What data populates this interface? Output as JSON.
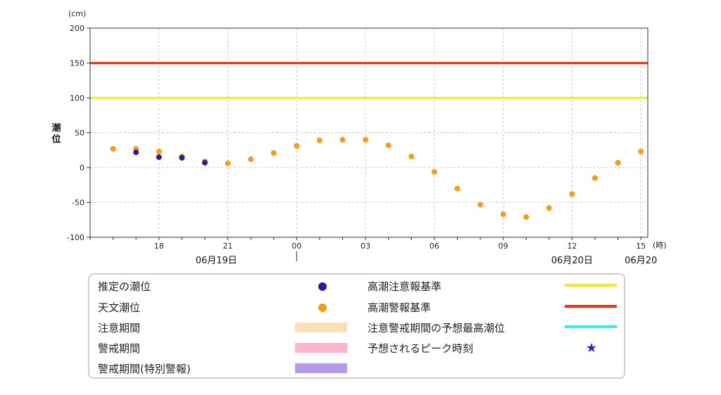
{
  "chart_data": {
    "type": "scatter",
    "ylabel": "潮位",
    "yunit": "(cm)",
    "xunit": "(時)",
    "ylim": [
      -100,
      200
    ],
    "yticks": [
      200,
      150,
      100,
      50,
      0,
      -50,
      -100
    ],
    "xrange_hours": [
      15,
      39.3
    ],
    "xticks": [
      {
        "h": 18,
        "label": "18"
      },
      {
        "h": 21,
        "label": "21"
      },
      {
        "h": 24,
        "label": "00"
      },
      {
        "h": 27,
        "label": "03"
      },
      {
        "h": 30,
        "label": "06"
      },
      {
        "h": 33,
        "label": "09"
      },
      {
        "h": 36,
        "label": "12"
      },
      {
        "h": 39,
        "label": "15"
      }
    ],
    "date_labels": [
      {
        "h": 20.5,
        "label": "06月19日"
      },
      {
        "h": 36,
        "label": "06月20日"
      },
      {
        "h": 39,
        "label": "06月20"
      }
    ],
    "grid": true,
    "reference_lines": [
      {
        "name": "高潮警報基準",
        "value": 150,
        "color": "#ee3311"
      },
      {
        "name": "高潮注意報基準",
        "value": 100,
        "color": "#eeee22"
      }
    ],
    "series": [
      {
        "name": "天文潮位",
        "color": "#ff9911",
        "x": [
          16,
          17,
          18,
          19,
          20,
          21,
          22,
          23,
          24,
          25,
          26,
          27,
          28,
          29,
          30,
          31,
          32,
          33,
          34,
          35,
          36,
          37,
          38,
          39
        ],
        "values": [
          27,
          27,
          23,
          16,
          9,
          6,
          12,
          21,
          31,
          39,
          40,
          40,
          32,
          16,
          -6,
          -30,
          -53,
          -67,
          -71,
          -58,
          -38,
          -15,
          7,
          23
        ]
      },
      {
        "name": "推定の潮位",
        "color": "#2a1ab0",
        "x": [
          17,
          18,
          19,
          20
        ],
        "values": [
          22,
          15,
          14,
          7
        ]
      }
    ]
  },
  "legend": {
    "items": [
      {
        "label": "推定の潮位"
      },
      {
        "label": "天文潮位"
      },
      {
        "label": "注意期間"
      },
      {
        "label": "警戒期間"
      },
      {
        "label": "警戒期間(特別警報)"
      },
      {
        "label": "高潮注意報基準"
      },
      {
        "label": "高潮警報基準"
      },
      {
        "label": "注意警戒期間の予想最高潮位"
      },
      {
        "label": "予想されるピーク時刻"
      }
    ],
    "colors": {
      "estimated": "#2a1ab0",
      "astronomical": "#ff9911",
      "caution_period": "#fde0b8",
      "warning_period": "#ffb3cc",
      "special_warning_period": "#b49be6",
      "advisory_line": "#eeee22",
      "warning_line": "#ee3311",
      "peak_line": "#33eeee",
      "peak_star": "#1a22dd"
    },
    "star_icon": "★"
  }
}
